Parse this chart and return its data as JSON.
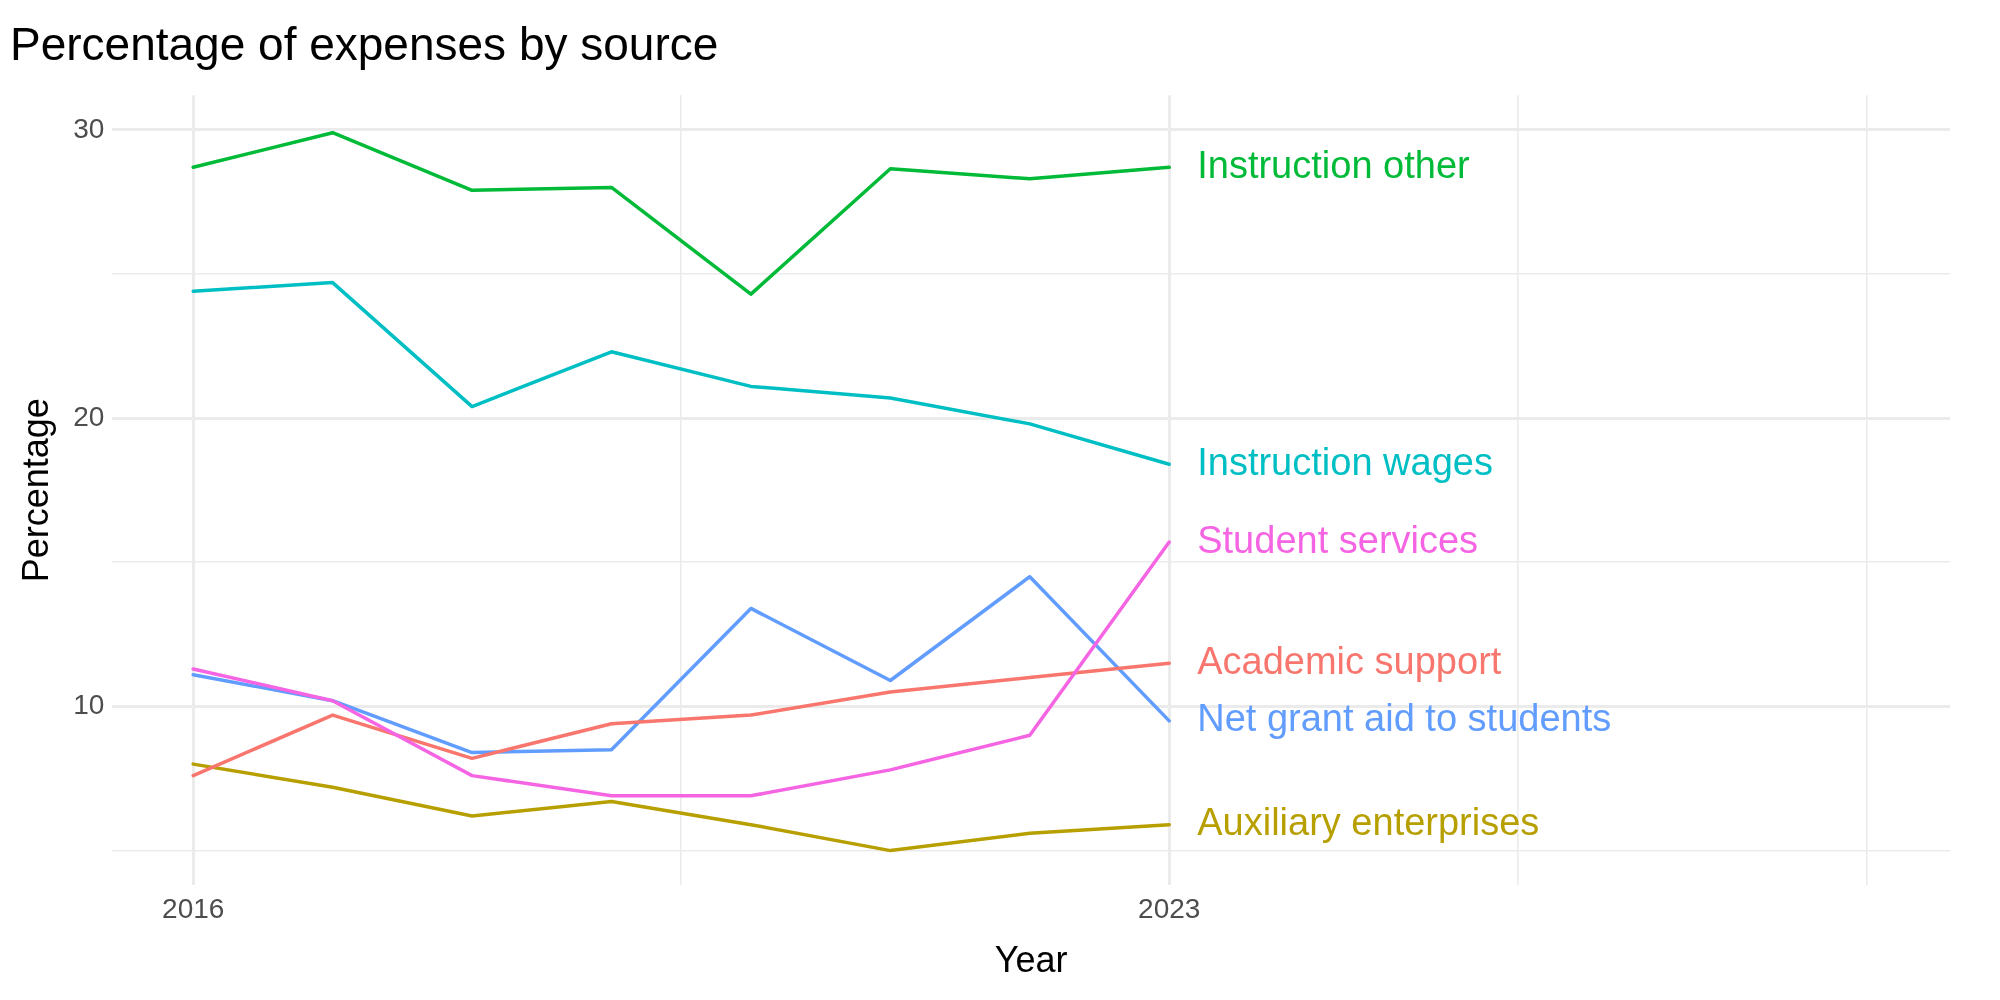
{
  "chart_data": {
    "type": "line",
    "title": "Percentage of expenses by source",
    "xlabel": "Year",
    "ylabel": "Percentage",
    "x": [
      2016,
      2017,
      2018,
      2019,
      2020,
      2021,
      2022,
      2023
    ],
    "series": [
      {
        "name": "Instruction other",
        "color": "#00ba38",
        "values": [
          28.7,
          29.9,
          27.9,
          28.0,
          24.3,
          28.65,
          28.3,
          28.7
        ]
      },
      {
        "name": "Instruction wages",
        "color": "#00bfc4",
        "values": [
          24.4,
          24.7,
          20.4,
          22.3,
          21.1,
          20.7,
          19.8,
          18.4
        ]
      },
      {
        "name": "Student services",
        "color": "#f564e3",
        "values": [
          11.3,
          10.2,
          7.6,
          6.9,
          6.9,
          7.8,
          9.0,
          15.7
        ]
      },
      {
        "name": "Academic support",
        "color": "#f8766d",
        "values": [
          7.6,
          9.7,
          8.2,
          9.4,
          9.7,
          10.5,
          11.0,
          11.5
        ]
      },
      {
        "name": "Net grant aid to students",
        "color": "#619cff",
        "values": [
          11.1,
          10.2,
          8.4,
          8.5,
          13.4,
          10.9,
          14.5,
          9.5
        ]
      },
      {
        "name": "Auxiliary enterprises",
        "color": "#b79f00",
        "values": [
          8.0,
          7.2,
          6.2,
          6.7,
          5.9,
          5.0,
          5.6,
          5.9
        ]
      }
    ],
    "xlim": [
      2015.42,
      2028.6
    ],
    "xticks": [
      2016,
      {
        "value": 2019.5,
        "label": null
      },
      2023,
      {
        "value": 2025.5,
        "label": null
      },
      {
        "value": 2028,
        "label": null
      }
    ],
    "ylim": [
      3.8,
      31.2
    ],
    "yticks": [
      {
        "value": 5,
        "label": null
      },
      10,
      {
        "value": 15,
        "label": null
      },
      20,
      {
        "value": 25,
        "label": null
      },
      30
    ],
    "grid": true,
    "legend": false,
    "marker": "none",
    "line_style": "solid"
  }
}
